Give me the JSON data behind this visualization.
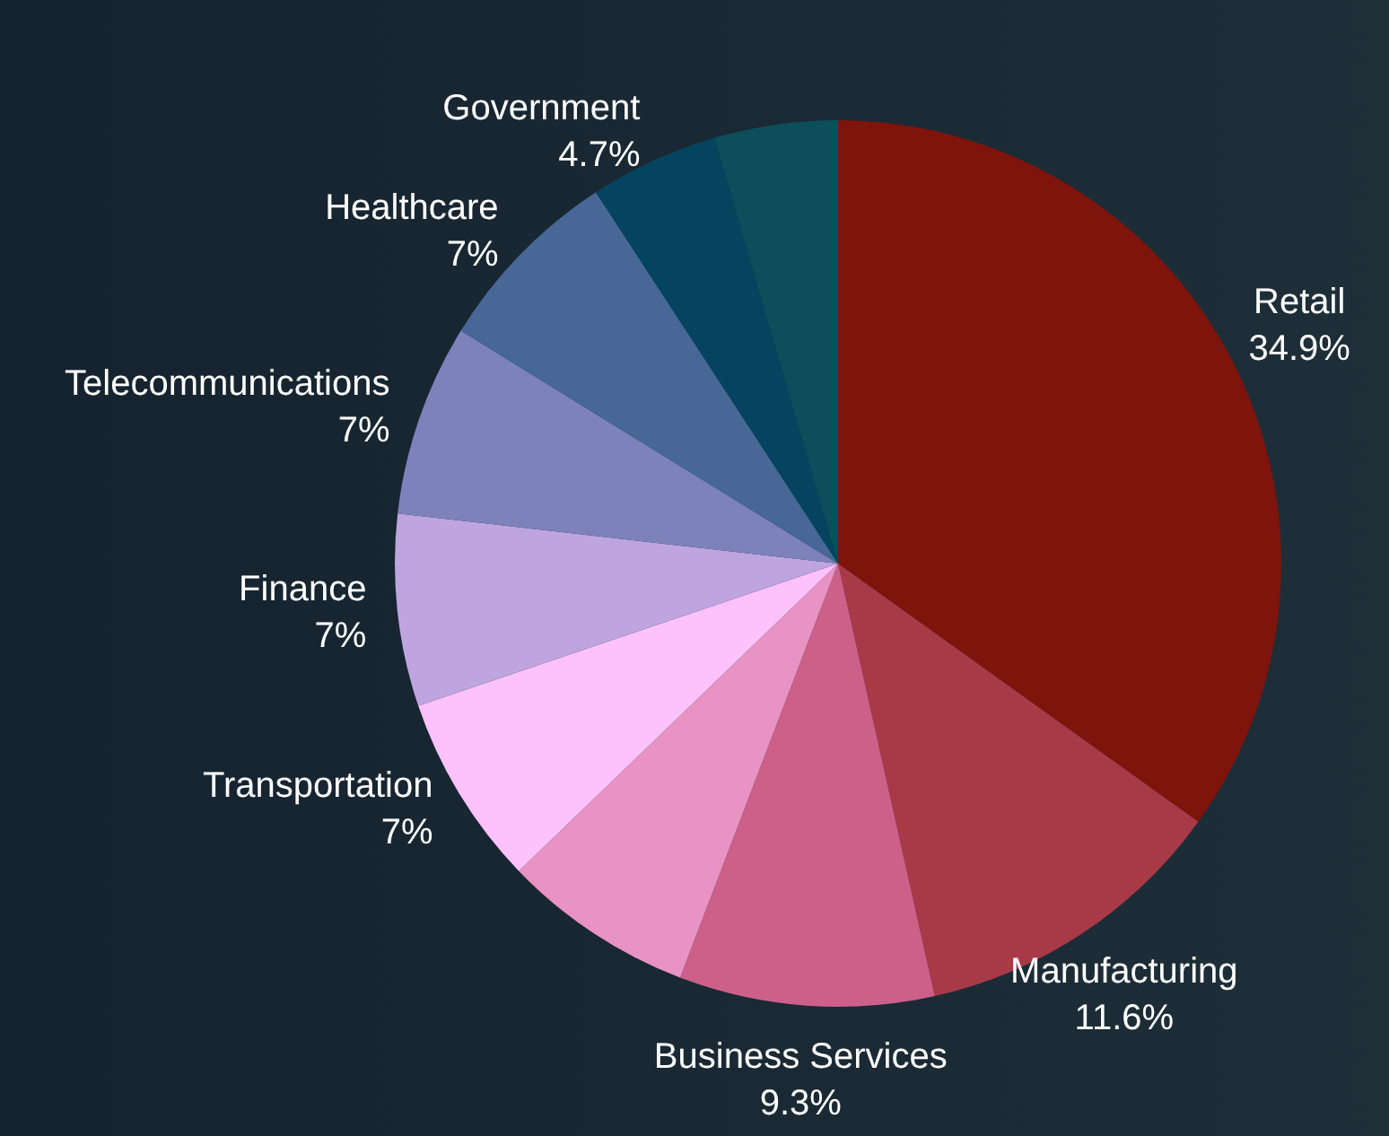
{
  "chart_data": {
    "type": "pie",
    "categories": [
      "Retail",
      "Manufacturing",
      "Business Services",
      null,
      "Transportation",
      "Finance",
      "Telecommunications",
      "Healthcare",
      "Government",
      null
    ],
    "values": [
      34.9,
      11.6,
      9.3,
      7,
      7,
      7,
      7,
      7,
      4.7,
      4.5
    ],
    "colors": [
      "#7f140c",
      "#a83a48",
      "#cc6088",
      "#e893c3",
      "#fdc2fc",
      "#bea5e0",
      "#7d82bb",
      "#476896",
      "#04445f",
      "#0c4e5a"
    ],
    "value_labels": [
      "34.9%",
      "11.6%",
      "9.3%",
      null,
      "7%",
      "7%",
      "7%",
      "7%",
      "4.7%",
      null
    ],
    "legend": false
  }
}
